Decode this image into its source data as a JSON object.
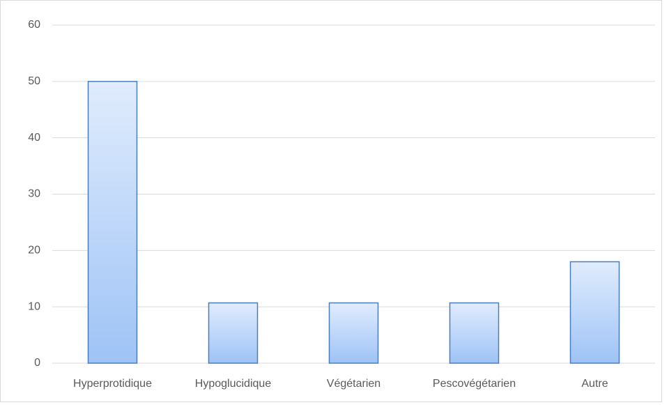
{
  "chart_data": {
    "type": "bar",
    "categories": [
      "Hyperprotidique",
      "Hypoglucidique",
      "Végétarien",
      "Pescovégétarien",
      "Autre"
    ],
    "values": [
      50,
      10.7,
      10.7,
      10.7,
      18
    ],
    "color": "#4a7ebb",
    "gradient": [
      "#e0ecfd",
      "#9ec3f6"
    ],
    "ylim": [
      0,
      60
    ],
    "yticks": [
      0,
      10,
      20,
      30,
      40,
      50,
      60
    ],
    "grid": true
  }
}
